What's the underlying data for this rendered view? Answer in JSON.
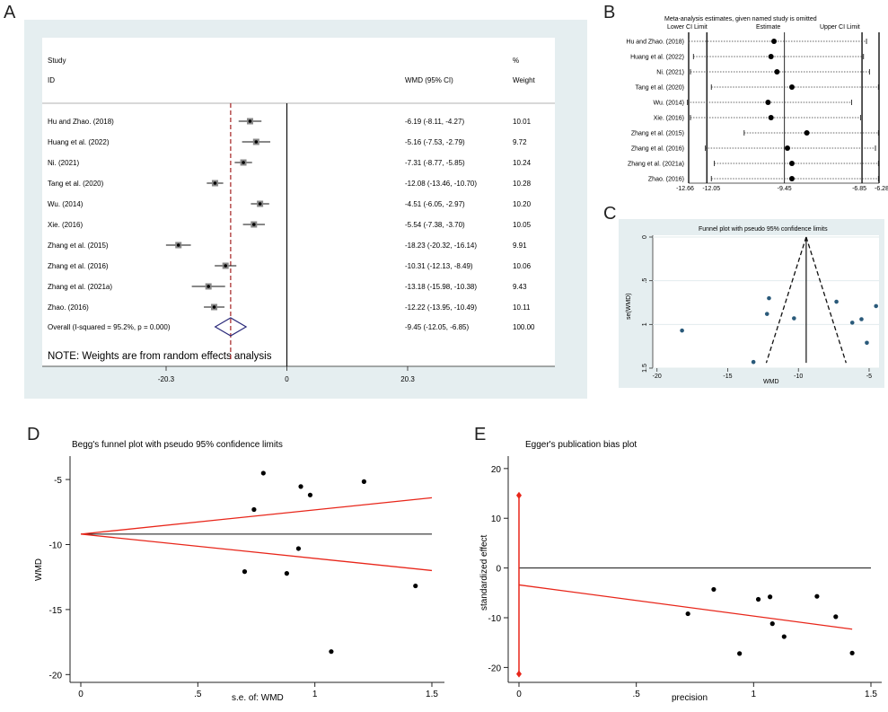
{
  "panel_labels": {
    "A": "A",
    "B": "B",
    "C": "C",
    "D": "D",
    "E": "E"
  },
  "colors": {
    "panel_bg": "#e5eef0",
    "red": "#e8261a",
    "dash_red": "#a52020",
    "diamond": "#2b2a7a",
    "teal_dot": "#2a5a7a"
  },
  "chart_data": [
    {
      "panel": "A",
      "type": "forest",
      "headers": {
        "study": "Study",
        "id": "ID",
        "wmd": "WMD (95% CI)",
        "pct": "%",
        "weight": "Weight"
      },
      "studies": [
        {
          "name": "Hu and Zhao. (2018)",
          "est": -6.19,
          "lo": -8.11,
          "hi": -4.27,
          "ci_text": "-6.19 (-8.11, -4.27)",
          "weight": "10.01"
        },
        {
          "name": "Huang et al. (2022)",
          "est": -5.16,
          "lo": -7.53,
          "hi": -2.79,
          "ci_text": "-5.16 (-7.53, -2.79)",
          "weight": "9.72"
        },
        {
          "name": "Ni. (2021)",
          "est": -7.31,
          "lo": -8.77,
          "hi": -5.85,
          "ci_text": "-7.31 (-8.77, -5.85)",
          "weight": "10.24"
        },
        {
          "name": "Tang et al. (2020)",
          "est": -12.08,
          "lo": -13.46,
          "hi": -10.7,
          "ci_text": "-12.08 (-13.46, -10.70)",
          "weight": "10.28"
        },
        {
          "name": "Wu. (2014)",
          "est": -4.51,
          "lo": -6.05,
          "hi": -2.97,
          "ci_text": "-4.51 (-6.05, -2.97)",
          "weight": "10.20"
        },
        {
          "name": "Xie. (2016)",
          "est": -5.54,
          "lo": -7.38,
          "hi": -3.7,
          "ci_text": "-5.54 (-7.38, -3.70)",
          "weight": "10.05"
        },
        {
          "name": "Zhang et al. (2015)",
          "est": -18.23,
          "lo": -20.32,
          "hi": -16.14,
          "ci_text": "-18.23 (-20.32, -16.14)",
          "weight": "9.91"
        },
        {
          "name": "Zhang et al. (2016)",
          "est": -10.31,
          "lo": -12.13,
          "hi": -8.49,
          "ci_text": "-10.31 (-12.13, -8.49)",
          "weight": "10.06"
        },
        {
          "name": "Zhang et al. (2021a)",
          "est": -13.18,
          "lo": -15.98,
          "hi": -10.38,
          "ci_text": "-13.18 (-15.98, -10.38)",
          "weight": "9.43"
        },
        {
          "name": "Zhao. (2016)",
          "est": -12.22,
          "lo": -13.95,
          "hi": -10.49,
          "ci_text": "-12.22 (-13.95, -10.49)",
          "weight": "10.11"
        }
      ],
      "overall": {
        "label": "Overall  (I-squared = 95.2%, p = 0.000)",
        "est": -9.45,
        "lo": -12.05,
        "hi": -6.85,
        "ci_text": "-9.45 (-12.05, -6.85)",
        "weight": "100.00"
      },
      "note": "NOTE: Weights are from random effects analysis",
      "xticks": [
        "-20.3",
        "0",
        "20.3"
      ],
      "xlim": [
        -20.3,
        20.3
      ]
    },
    {
      "panel": "B",
      "type": "sensitivity",
      "title": "Meta-analysis estimates, given named study is omitted",
      "legend": {
        "lower": "Lower CI Limit",
        "estimate": "Estimate",
        "upper": "Upper CI Limit"
      },
      "rows": [
        {
          "name": "Hu and Zhao. (2018)",
          "est": -9.8,
          "lo": -12.66,
          "hi": -6.7
        },
        {
          "name": "Huang et al. (2022)",
          "est": -9.9,
          "lo": -12.5,
          "hi": -6.8
        },
        {
          "name": "Ni. (2021)",
          "est": -9.7,
          "lo": -12.6,
          "hi": -6.6
        },
        {
          "name": "Tang et al. (2020)",
          "est": -9.2,
          "lo": -11.9,
          "hi": -6.3
        },
        {
          "name": "Wu. (2014)",
          "est": -10.0,
          "lo": -12.7,
          "hi": -7.2
        },
        {
          "name": "Xie. (2016)",
          "est": -9.9,
          "lo": -12.6,
          "hi": -6.9
        },
        {
          "name": "Zhang et al. (2015)",
          "est": -8.7,
          "lo": -10.8,
          "hi": -6.3
        },
        {
          "name": "Zhang et al. (2016)",
          "est": -9.35,
          "lo": -12.1,
          "hi": -6.4
        },
        {
          "name": "Zhang et al. (2021a)",
          "est": -9.2,
          "lo": -11.8,
          "hi": -6.3
        },
        {
          "name": "Zhao. (2016)",
          "est": -9.2,
          "lo": -11.9,
          "hi": -6.3
        }
      ],
      "ticks": [
        "-12.66",
        "-12.05",
        "-9.45",
        "-6.85",
        "-6.28"
      ],
      "tick_values": [
        -12.66,
        -12.05,
        -9.45,
        -6.85,
        -6.28
      ],
      "xlim": [
        -12.66,
        -6.28
      ]
    },
    {
      "panel": "C",
      "type": "scatter",
      "title": "Funnel plot with pseudo 95% confidence limits",
      "xlabel": "WMD",
      "ylabel": "se(WMD)",
      "xticks": [
        "-20",
        "-15",
        "-10",
        "-5"
      ],
      "xtick_values": [
        -20,
        -15,
        -10,
        -5
      ],
      "yticks": [
        "0",
        ".5",
        "1",
        "1.5"
      ],
      "ytick_values": [
        0,
        0.5,
        1,
        1.5
      ],
      "xlim": [
        -20.3,
        -4.3
      ],
      "ylim": [
        0,
        1.5
      ],
      "points": [
        [
          -18.23,
          1.07
        ],
        [
          -13.18,
          1.43
        ],
        [
          -12.08,
          0.7
        ],
        [
          -12.22,
          0.88
        ],
        [
          -10.31,
          0.93
        ],
        [
          -7.31,
          0.74
        ],
        [
          -6.19,
          0.98
        ],
        [
          -5.54,
          0.94
        ],
        [
          -5.16,
          1.21
        ],
        [
          -4.51,
          0.79
        ]
      ],
      "pooled": -9.45
    },
    {
      "panel": "D",
      "type": "scatter",
      "title": "Begg's funnel plot with pseudo 95% confidence limits",
      "xlabel": "s.e. of: WMD",
      "ylabel": "WMD",
      "xticks": [
        "0",
        ".5",
        "1",
        "1.5"
      ],
      "xtick_values": [
        0,
        0.5,
        1,
        1.5
      ],
      "yticks": [
        "-5",
        "-10",
        "-15",
        "-20"
      ],
      "ytick_values": [
        -5,
        -10,
        -15,
        -20
      ],
      "xlim": [
        0,
        1.5
      ],
      "ylim": [
        -20.6,
        -3.2
      ],
      "points": [
        [
          0.78,
          -4.51
        ],
        [
          0.94,
          -5.54
        ],
        [
          0.98,
          -6.19
        ],
        [
          1.21,
          -5.16
        ],
        [
          0.74,
          -7.31
        ],
        [
          0.93,
          -10.31
        ],
        [
          0.7,
          -12.08
        ],
        [
          0.88,
          -12.22
        ],
        [
          1.43,
          -13.18
        ],
        [
          1.07,
          -18.23
        ]
      ],
      "pooled": -9.2,
      "upper_end": -6.4,
      "lower_end": -12.0
    },
    {
      "panel": "E",
      "type": "scatter",
      "title": "Egger's publication bias plot",
      "xlabel": "precision",
      "ylabel": "standardized effect",
      "xticks": [
        "0",
        ".5",
        "1",
        "1.5"
      ],
      "xtick_values": [
        0,
        0.5,
        1,
        1.5
      ],
      "yticks": [
        "20",
        "10",
        "0",
        "-10",
        "-20"
      ],
      "ytick_values": [
        20,
        10,
        0,
        -10,
        -20
      ],
      "xlim": [
        0,
        1.5
      ],
      "ylim": [
        -23,
        22.5
      ],
      "points": [
        [
          0.72,
          -9.2
        ],
        [
          0.83,
          -4.3
        ],
        [
          0.94,
          -17.2
        ],
        [
          1.02,
          -6.3
        ],
        [
          1.07,
          -5.8
        ],
        [
          1.08,
          -11.2
        ],
        [
          1.13,
          -13.8
        ],
        [
          1.27,
          -5.7
        ],
        [
          1.35,
          -9.8
        ],
        [
          1.42,
          -17.1
        ]
      ],
      "reg_start": -3.4,
      "reg_end": -12.3,
      "intercept_ci": [
        14.6,
        -21.3
      ]
    }
  ]
}
